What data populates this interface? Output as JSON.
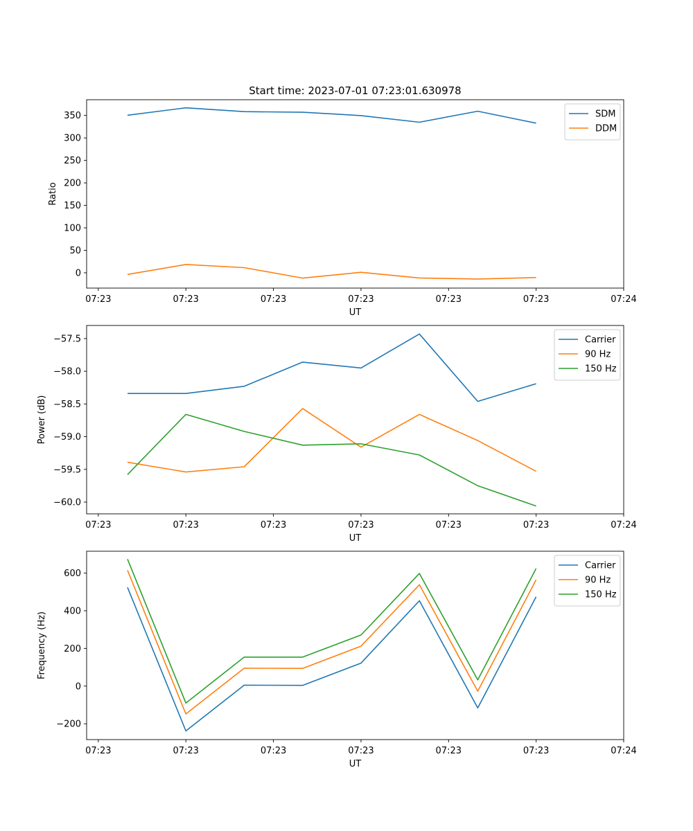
{
  "figure": {
    "title": "Start time: 2023-07-01 07:23:01.630978"
  },
  "chart_data": [
    {
      "type": "line",
      "title": "Start time: 2023-07-01 07:23:01.630978",
      "xlabel": "UT",
      "ylabel": "Ratio",
      "x_index": [
        1,
        2,
        3,
        4,
        5,
        6,
        7,
        8
      ],
      "xlim": [
        0.3,
        9.5
      ],
      "x_ticks": [
        {
          "at": 0.5,
          "label": "07:23"
        },
        {
          "at": 2,
          "label": "07:23"
        },
        {
          "at": 3.5,
          "label": "07:23"
        },
        {
          "at": 5,
          "label": "07:23"
        },
        {
          "at": 6.5,
          "label": "07:23"
        },
        {
          "at": 8,
          "label": "07:23"
        },
        {
          "at": 9.5,
          "label": "07:24"
        }
      ],
      "ylim": [
        -34,
        385
      ],
      "y_ticks": [
        0,
        50,
        100,
        150,
        200,
        250,
        300,
        350
      ],
      "legend_position": "upper right",
      "series": [
        {
          "name": "SDM",
          "color": "#1f77b4",
          "values": [
            350.5,
            366.9,
            358.5,
            357.1,
            349.8,
            335.0,
            359.4,
            332.9
          ]
        },
        {
          "name": "DDM",
          "color": "#ff7f0e",
          "values": [
            -3.7,
            18.5,
            11.5,
            -11.8,
            1.1,
            -11.5,
            -13.8,
            -10.6
          ]
        }
      ]
    },
    {
      "type": "line",
      "title": "",
      "xlabel": "UT",
      "ylabel": "Power (dB)",
      "x_index": [
        1,
        2,
        3,
        4,
        5,
        6,
        7,
        8
      ],
      "xlim": [
        0.3,
        9.5
      ],
      "x_ticks": [
        {
          "at": 0.5,
          "label": "07:23"
        },
        {
          "at": 2,
          "label": "07:23"
        },
        {
          "at": 3.5,
          "label": "07:23"
        },
        {
          "at": 5,
          "label": "07:23"
        },
        {
          "at": 6.5,
          "label": "07:23"
        },
        {
          "at": 8,
          "label": "07:23"
        },
        {
          "at": 9.5,
          "label": "07:24"
        }
      ],
      "ylim": [
        -60.18,
        -57.3
      ],
      "y_ticks": [
        -60.0,
        -59.5,
        -59.0,
        -58.5,
        -58.0,
        -57.5
      ],
      "y_tick_labels": [
        "−60.0",
        "−59.5",
        "−59.0",
        "−58.5",
        "−58.0",
        "−57.5"
      ],
      "legend_position": "upper right",
      "series": [
        {
          "name": "Carrier",
          "color": "#1f77b4",
          "values": [
            -58.34,
            -58.34,
            -58.23,
            -57.86,
            -57.95,
            -57.43,
            -58.46,
            -58.19
          ]
        },
        {
          "name": "90 Hz",
          "color": "#ff7f0e",
          "values": [
            -59.39,
            -59.54,
            -59.46,
            -58.57,
            -59.16,
            -58.66,
            -59.06,
            -59.53
          ]
        },
        {
          "name": "150 Hz",
          "color": "#2ca02c",
          "values": [
            -59.58,
            -58.66,
            -58.92,
            -59.13,
            -59.11,
            -59.28,
            -59.75,
            -60.06
          ]
        }
      ]
    },
    {
      "type": "line",
      "title": "",
      "xlabel": "UT",
      "ylabel": "Frequency (Hz)",
      "x_index": [
        1,
        2,
        3,
        4,
        5,
        6,
        7,
        8
      ],
      "xlim": [
        0.3,
        9.5
      ],
      "x_ticks": [
        {
          "at": 0.5,
          "label": "07:23"
        },
        {
          "at": 2,
          "label": "07:23"
        },
        {
          "at": 3.5,
          "label": "07:23"
        },
        {
          "at": 5,
          "label": "07:23"
        },
        {
          "at": 6.5,
          "label": "07:23"
        },
        {
          "at": 8,
          "label": "07:23"
        },
        {
          "at": 9.5,
          "label": "07:24"
        }
      ],
      "ylim": [
        -284,
        716
      ],
      "y_ticks": [
        -200,
        0,
        200,
        400,
        600
      ],
      "y_tick_labels": [
        "−200",
        "0",
        "200",
        "400",
        "600"
      ],
      "legend_position": "upper right",
      "series": [
        {
          "name": "Carrier",
          "color": "#1f77b4",
          "values": [
            524,
            -238,
            5,
            4,
            122,
            453,
            -116,
            474
          ]
        },
        {
          "name": "90 Hz",
          "color": "#ff7f0e",
          "values": [
            615,
            -148,
            95,
            94,
            212,
            538,
            -27,
            564
          ]
        },
        {
          "name": "150 Hz",
          "color": "#2ca02c",
          "values": [
            674,
            -90,
            154,
            154,
            271,
            598,
            33,
            624
          ]
        }
      ]
    }
  ]
}
